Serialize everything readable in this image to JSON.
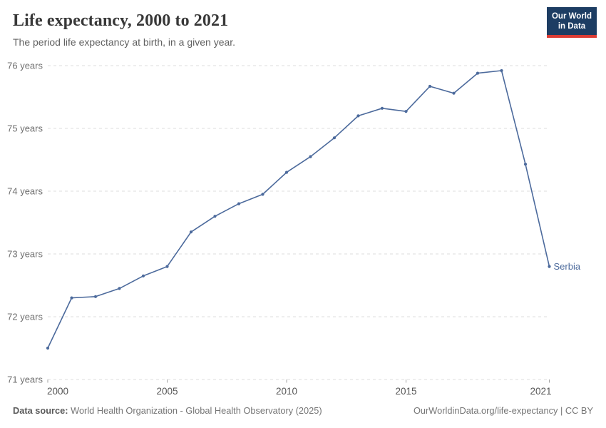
{
  "header": {
    "title": "Life expectancy, 2000 to 2021",
    "subtitle": "The period life expectancy at birth, in a given year.",
    "logo": {
      "line1": "Our World",
      "line2": "in Data"
    }
  },
  "chart_data": {
    "type": "line",
    "title": "Life expectancy, 2000 to 2021",
    "x": [
      2000,
      2001,
      2002,
      2003,
      2004,
      2005,
      2006,
      2007,
      2008,
      2009,
      2010,
      2011,
      2012,
      2013,
      2014,
      2015,
      2016,
      2017,
      2018,
      2019,
      2020,
      2021
    ],
    "series": [
      {
        "name": "Serbia",
        "color": "#4c6a9c",
        "values": [
          71.5,
          72.3,
          72.32,
          72.45,
          72.65,
          72.8,
          73.35,
          73.6,
          73.8,
          73.95,
          74.3,
          74.55,
          74.85,
          75.2,
          75.32,
          75.27,
          75.67,
          75.56,
          75.88,
          75.92,
          74.43,
          72.8
        ]
      }
    ],
    "xlabel": "",
    "ylabel": "",
    "xlim": [
      2000,
      2021
    ],
    "ylim": [
      71,
      76
    ],
    "yticks": [
      71,
      72,
      73,
      74,
      75,
      76
    ],
    "ytick_suffix": " years",
    "xticks": [
      2000,
      2005,
      2010,
      2015,
      2021
    ],
    "grid": "horizontal-dashed",
    "legend_position": "end-of-line-label"
  },
  "footer": {
    "source_label": "Data source:",
    "source_value": "World Health Organization - Global Health Observatory (2025)",
    "url": "OurWorldinData.org/life-expectancy",
    "license_separator": " | ",
    "license": "CC BY"
  },
  "colors": {
    "line": "#4c6a9c",
    "logo_background": "#1d3d63",
    "logo_accent": "#dc3c34",
    "gridline": "#dcdcdc",
    "ytick_text": "#6f6f6f",
    "xtick_text": "#565656",
    "tick_mark": "#a3a3a3"
  }
}
